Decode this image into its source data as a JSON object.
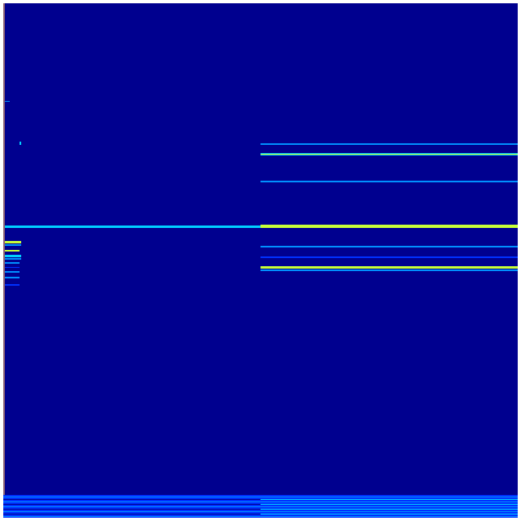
{
  "chart_data": {
    "type": "heatmap",
    "colormap": "jet",
    "title": "",
    "xlabel": "",
    "ylabel": "",
    "grid": false,
    "colors": {
      "background": "#00008f",
      "low": "#0030ff",
      "mid": "#0090ff",
      "cyan": "#00d0ff",
      "high": "#c8ff38"
    }
  }
}
